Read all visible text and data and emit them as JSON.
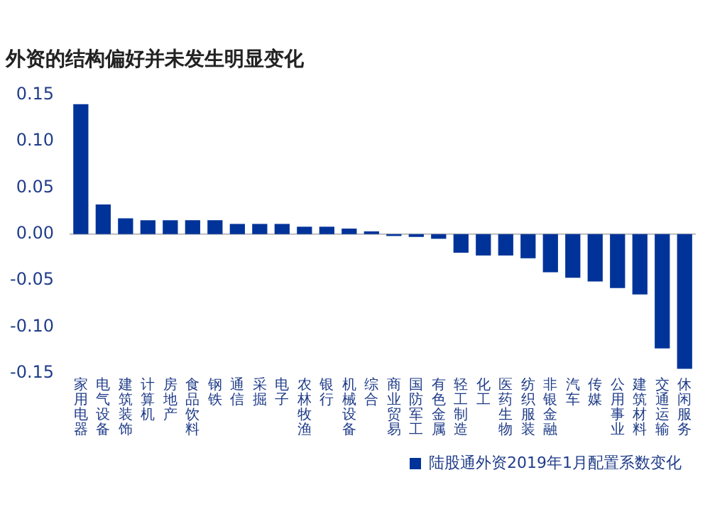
{
  "chart_data": {
    "type": "bar",
    "title": "外资的结构偏好并未发生明显变化",
    "categories": [
      "家用电器",
      "电气设备",
      "建筑装饰",
      "计算机",
      "房地产",
      "食品饮料",
      "钢铁",
      "通信",
      "采掘",
      "电子",
      "农林牧渔",
      "银行",
      "机械设备",
      "综合",
      "商业贸易",
      "国防军工",
      "有色金属",
      "轻工制造",
      "化工",
      "医药生物",
      "纺织服装",
      "非银金融",
      "汽车",
      "传媒",
      "公用事业",
      "建筑材料",
      "交通运输",
      "休闲服务"
    ],
    "series": [
      {
        "name": "陆股通外资2019年1月配置系数变化",
        "color": "#003399",
        "values": [
          0.14,
          0.032,
          0.017,
          0.015,
          0.015,
          0.015,
          0.015,
          0.011,
          0.011,
          0.011,
          0.008,
          0.008,
          0.006,
          0.003,
          -0.002,
          -0.003,
          -0.005,
          -0.02,
          -0.023,
          -0.023,
          -0.026,
          -0.041,
          -0.047,
          -0.051,
          -0.058,
          -0.065,
          -0.123,
          -0.145
        ]
      }
    ],
    "ylim": [
      -0.15,
      0.15
    ],
    "yticks": [
      {
        "value": -0.15,
        "label": "-0.15"
      },
      {
        "value": -0.1,
        "label": "-0.10"
      },
      {
        "value": -0.05,
        "label": "-0.05"
      },
      {
        "value": 0,
        "label": "0.00"
      },
      {
        "value": 0.05,
        "label": "0.05"
      },
      {
        "value": 0.1,
        "label": "0.10"
      },
      {
        "value": 0.15,
        "label": "0.15"
      }
    ],
    "grid": false,
    "legend": "bottom",
    "ref_lines": [
      {
        "axis": "y",
        "value": 0,
        "color": "#bbbbbb"
      }
    ]
  }
}
